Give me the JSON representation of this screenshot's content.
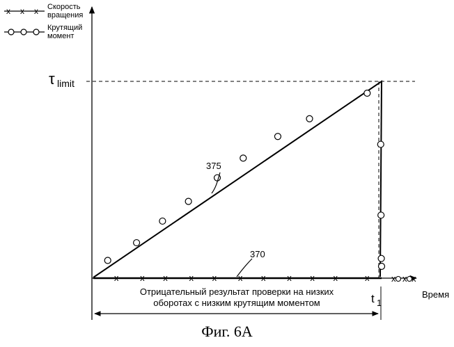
{
  "legend": {
    "speed": [
      "Скорость",
      "вращения"
    ],
    "torque": [
      "Крутящий",
      "момент"
    ]
  },
  "axes": {
    "x_label": "Время",
    "tau_symbol": "τ",
    "tau_subscript": "limit",
    "t_symbol": "t",
    "t_subscript": "1"
  },
  "labels": {
    "ref_375": "375",
    "ref_370": "370"
  },
  "interval_text": [
    "Отрицательный результат проверки на низких",
    "оборотах с низким крутящим моментом"
  ],
  "caption": "Фиг. 6A",
  "chart_data": {
    "type": "line",
    "series": [
      {
        "name": "Скорость вращения",
        "marker": "x",
        "x": [
          0.08,
          0.17,
          0.25,
          0.34,
          0.42,
          0.51,
          0.59,
          0.68,
          0.76,
          0.84,
          0.95
        ],
        "y": [
          0,
          0,
          0,
          0,
          0,
          0,
          0,
          0,
          0,
          0,
          0
        ]
      },
      {
        "name": "Крутящий момент",
        "marker": "o",
        "x": [
          0.05,
          0.15,
          0.24,
          0.33,
          0.43,
          0.52,
          0.64,
          0.75,
          0.95,
          0.997,
          0.998,
          0.999,
          1.0
        ],
        "y": [
          0.09,
          0.18,
          0.29,
          0.39,
          0.51,
          0.61,
          0.72,
          0.81,
          0.94,
          0.68,
          0.32,
          0.1,
          0.06
        ]
      }
    ],
    "reference_lines": {
      "tau_limit": 1.0,
      "t1": 1.0
    }
  }
}
